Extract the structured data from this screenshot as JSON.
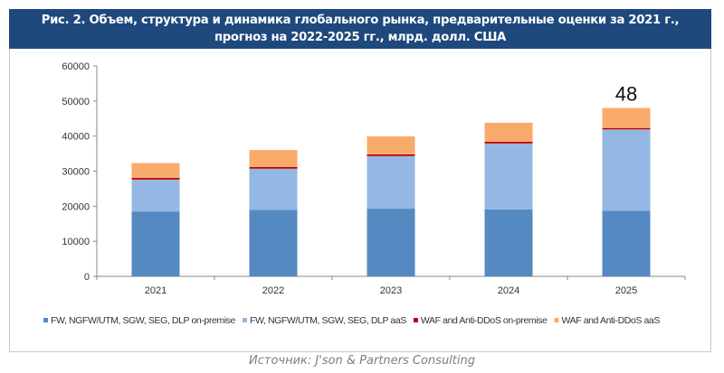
{
  "title_line1": "Рис. 2. Объем, структура и динамика глобального рынка, предварительные оценки за 2021 г.,",
  "title_line2": "прогноз на 2022-2025 гг., млрд. долл. США",
  "source": "Источник: J'son & Partners Consulting",
  "chart_data": {
    "type": "bar",
    "stacked": true,
    "categories": [
      "2021",
      "2022",
      "2023",
      "2024",
      "2025"
    ],
    "ylim": [
      0,
      60000
    ],
    "yticks": [
      0,
      10000,
      20000,
      30000,
      40000,
      50000,
      60000
    ],
    "grid": false,
    "legend_position": "bottom",
    "series": [
      {
        "name": "FW, NGFW/UTM, SGW, SEG, DLP on-premise",
        "color": "#5589c2",
        "values": [
          18500,
          19000,
          19300,
          19100,
          18700
        ]
      },
      {
        "name": "FW, NGFW/UTM, SGW, SEG, DLP aaS",
        "color": "#94b8e3",
        "values": [
          9100,
          11700,
          15000,
          18800,
          23200
        ]
      },
      {
        "name": "WAF and Anti-DDoS on-premise",
        "color": "#c00000",
        "values": [
          500,
          500,
          500,
          500,
          400
        ]
      },
      {
        "name": "WAF and Anti-DDoS aaS",
        "color": "#f8aa6b",
        "values": [
          4200,
          4800,
          5100,
          5400,
          5700
        ]
      }
    ],
    "annotations": [
      {
        "category": "2025",
        "text": "48"
      }
    ]
  }
}
